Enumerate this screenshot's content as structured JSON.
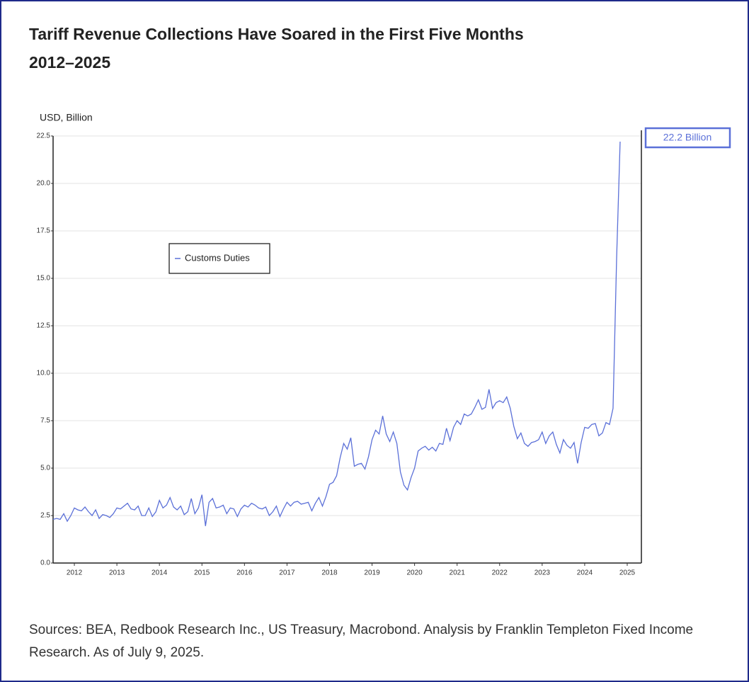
{
  "chart_data": {
    "type": "line",
    "title": "Tariff Revenue Collections Have Soared in the First Five Months",
    "subtitle": "2012–2025",
    "y_label": "USD, Billion",
    "source": "Sources: BEA, Redbook Research Inc., US Treasury, Macrobond. Analysis by Franklin Templeton Fixed Income Research. As of July 9, 2025.",
    "categories": [
      null,
      null,
      null,
      null,
      null,
      null,
      "2012",
      null,
      null,
      null,
      null,
      null,
      null,
      null,
      null,
      null,
      null,
      null,
      "2013",
      null,
      null,
      null,
      null,
      null,
      null,
      null,
      null,
      null,
      null,
      null,
      "2014",
      null,
      null,
      null,
      null,
      null,
      null,
      null,
      null,
      null,
      null,
      null,
      "2015",
      null,
      null,
      null,
      null,
      null,
      null,
      null,
      null,
      null,
      null,
      null,
      "2016",
      null,
      null,
      null,
      null,
      null,
      null,
      null,
      null,
      null,
      null,
      null,
      "2017",
      null,
      null,
      null,
      null,
      null,
      null,
      null,
      null,
      null,
      null,
      null,
      "2018",
      null,
      null,
      null,
      null,
      null,
      null,
      null,
      null,
      null,
      null,
      null,
      "2019",
      null,
      null,
      null,
      null,
      null,
      null,
      null,
      null,
      null,
      null,
      null,
      "2020",
      null,
      null,
      null,
      null,
      null,
      null,
      null,
      null,
      null,
      null,
      null,
      "2021",
      null,
      null,
      null,
      null,
      null,
      null,
      null,
      null,
      null,
      null,
      null,
      "2022",
      null,
      null,
      null,
      null,
      null,
      null,
      null,
      null,
      null,
      null,
      null,
      "2023",
      null,
      null,
      null,
      null,
      null,
      null,
      null,
      null,
      null,
      null,
      null,
      "2024",
      null,
      null,
      null,
      null,
      null,
      null,
      null,
      null,
      null,
      null,
      null,
      "2025",
      null,
      null,
      null
    ],
    "series": [
      {
        "name": "Customs Duties",
        "color": "#5b70d8",
        "values": [
          2.3,
          2.35,
          2.3,
          2.6,
          2.2,
          2.5,
          2.9,
          2.8,
          2.75,
          2.95,
          2.7,
          2.5,
          2.8,
          2.35,
          2.55,
          2.5,
          2.4,
          2.6,
          2.9,
          2.85,
          3.0,
          3.15,
          2.85,
          2.8,
          3.0,
          2.5,
          2.5,
          2.9,
          2.45,
          2.7,
          3.3,
          2.9,
          3.05,
          3.45,
          2.95,
          2.8,
          3.0,
          2.55,
          2.7,
          3.4,
          2.6,
          2.9,
          3.6,
          1.95,
          3.2,
          3.4,
          2.9,
          2.95,
          3.05,
          2.6,
          2.9,
          2.85,
          2.45,
          2.85,
          3.05,
          2.95,
          3.15,
          3.05,
          2.9,
          2.85,
          2.95,
          2.5,
          2.7,
          3.0,
          2.45,
          2.85,
          3.2,
          3.0,
          3.2,
          3.25,
          3.1,
          3.15,
          3.2,
          2.75,
          3.15,
          3.45,
          3.0,
          3.5,
          4.15,
          4.25,
          4.6,
          5.55,
          6.3,
          6.0,
          6.6,
          5.1,
          5.2,
          5.25,
          4.95,
          5.6,
          6.5,
          7.0,
          6.8,
          7.75,
          6.8,
          6.4,
          6.9,
          6.3,
          4.8,
          4.1,
          3.85,
          4.5,
          5.0,
          5.9,
          6.05,
          6.15,
          5.95,
          6.1,
          5.9,
          6.3,
          6.25,
          7.1,
          6.45,
          7.15,
          7.5,
          7.3,
          7.85,
          7.75,
          7.85,
          8.2,
          8.6,
          8.1,
          8.2,
          9.15,
          8.15,
          8.45,
          8.55,
          8.45,
          8.75,
          8.15,
          7.2,
          6.55,
          6.85,
          6.3,
          6.15,
          6.35,
          6.4,
          6.5,
          6.9,
          6.3,
          6.7,
          6.9,
          6.25,
          5.8,
          6.5,
          6.2,
          6.05,
          6.35,
          5.25,
          6.35,
          7.15,
          7.1,
          7.3,
          7.35,
          6.7,
          6.85,
          7.4,
          7.3,
          8.15,
          16.0,
          22.2,
          null,
          null,
          null,
          null,
          null
        ],
        "value_labels": [
          null,
          null,
          null,
          null,
          null,
          null,
          null,
          null,
          null,
          null,
          null,
          null,
          null,
          null,
          null,
          null,
          null,
          null,
          null,
          null,
          null,
          null,
          null,
          null,
          null,
          null,
          null,
          null,
          null,
          null,
          null,
          null,
          null,
          null,
          null,
          null,
          null,
          null,
          null,
          null,
          null,
          null,
          null,
          null,
          null,
          null,
          null,
          null,
          null,
          null,
          null,
          null,
          null,
          null,
          null,
          null,
          null,
          null,
          null,
          null,
          null,
          null,
          null,
          null,
          null,
          null,
          null,
          null,
          null,
          null,
          null,
          null,
          null,
          null,
          null,
          null,
          null,
          null,
          null,
          null,
          null,
          null,
          null,
          null,
          null,
          null,
          null,
          null,
          null,
          null,
          null,
          null,
          null,
          null,
          null,
          null,
          null,
          null,
          null,
          null,
          null,
          null,
          null,
          null,
          null,
          null,
          null,
          null,
          null,
          null,
          null,
          null,
          null,
          null,
          null,
          null,
          null,
          null,
          null,
          null,
          null,
          null,
          null,
          null,
          null,
          null,
          null,
          null,
          null,
          null,
          null,
          null,
          null,
          null,
          null,
          null,
          null,
          null,
          null,
          null,
          null,
          null,
          null,
          null,
          null,
          null,
          null,
          null,
          null,
          null,
          null,
          null,
          null,
          null,
          null,
          null,
          null,
          null,
          null,
          null,
          "22.2 Billion",
          null,
          null,
          null,
          null,
          null
        ]
      }
    ],
    "ylim": [
      0,
      22.5
    ],
    "yticks": [
      {
        "value": 0,
        "label": "0.0"
      },
      2.5,
      {
        "value": 5,
        "label": "5.0"
      },
      7.5,
      {
        "value": 10,
        "label": "10.0"
      },
      12.5,
      {
        "value": 15,
        "label": "15.0"
      },
      17.5,
      {
        "value": 20,
        "label": "20.0"
      },
      22.5
    ],
    "grid": true,
    "legend": "upper left"
  }
}
